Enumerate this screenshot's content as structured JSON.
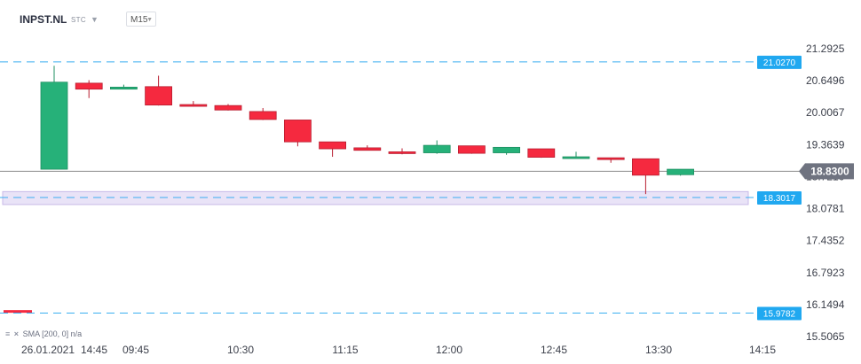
{
  "header": {
    "symbol": "INPST.NL",
    "exchange": "STC",
    "caret": "▼",
    "timeframe": "M15",
    "timeframe_caret": "▼"
  },
  "indicator": {
    "icon": "≡",
    "remove": "×",
    "label": "SMA",
    "params": "[200, 0]",
    "value": "n/a"
  },
  "colors": {
    "up": "#26b179",
    "down": "#f5293f",
    "dashed": "#3aaef0",
    "zone_fill": "#e9e3f7",
    "zone_border": "#c8b9e8",
    "current_line": "#8a8a8a",
    "current_badge": "#6f7380"
  },
  "chart_data": {
    "type": "candlestick",
    "symbol": "INPST.NL",
    "timeframe": "M15",
    "y_axis": {
      "ticks": [
        "21.2925",
        "20.6496",
        "20.0067",
        "19.3639",
        "18.7210",
        "18.0781",
        "17.4352",
        "16.7923",
        "16.1494",
        "15.5065"
      ],
      "range": [
        15.45,
        21.35
      ]
    },
    "x_axis": {
      "ticks": [
        "26.01.2021",
        "14:45",
        "09:45",
        "10:30",
        "11:15",
        "12:00",
        "12:45",
        "13:30",
        "14:15"
      ]
    },
    "candles": [
      {
        "o": 18.87,
        "h": 20.95,
        "l": 18.87,
        "c": 20.62
      },
      {
        "o": 20.6,
        "h": 20.66,
        "l": 20.3,
        "c": 20.48
      },
      {
        "o": 20.48,
        "h": 20.57,
        "l": 20.48,
        "c": 20.52
      },
      {
        "o": 20.53,
        "h": 20.75,
        "l": 20.15,
        "c": 20.16
      },
      {
        "o": 20.17,
        "h": 20.24,
        "l": 20.13,
        "c": 20.15
      },
      {
        "o": 20.15,
        "h": 20.18,
        "l": 20.05,
        "c": 20.06
      },
      {
        "o": 20.03,
        "h": 20.1,
        "l": 19.86,
        "c": 19.87
      },
      {
        "o": 19.86,
        "h": 19.86,
        "l": 19.33,
        "c": 19.42
      },
      {
        "o": 19.42,
        "h": 19.42,
        "l": 19.12,
        "c": 19.28
      },
      {
        "o": 19.3,
        "h": 19.35,
        "l": 19.25,
        "c": 19.25
      },
      {
        "o": 19.22,
        "h": 19.29,
        "l": 19.17,
        "c": 19.19
      },
      {
        "o": 19.2,
        "h": 19.45,
        "l": 19.18,
        "c": 19.35
      },
      {
        "o": 19.34,
        "h": 19.34,
        "l": 19.18,
        "c": 19.19
      },
      {
        "o": 19.2,
        "h": 19.31,
        "l": 19.16,
        "c": 19.31
      },
      {
        "o": 19.28,
        "h": 19.28,
        "l": 19.1,
        "c": 19.11
      },
      {
        "o": 19.09,
        "h": 19.22,
        "l": 19.09,
        "c": 19.12
      },
      {
        "o": 19.1,
        "h": 19.1,
        "l": 19.0,
        "c": 19.08
      },
      {
        "o": 19.08,
        "h": 19.08,
        "l": 18.37,
        "c": 18.75
      },
      {
        "o": 18.76,
        "h": 18.87,
        "l": 18.74,
        "c": 18.87
      }
    ],
    "levels": [
      {
        "value": 21.027,
        "label": "21.0270",
        "style": "dashed"
      },
      {
        "value": 18.3017,
        "label": "18.3017",
        "style": "dashed"
      },
      {
        "value": 15.9782,
        "label": "15.9782",
        "style": "dashed"
      }
    ],
    "zone": {
      "from": 18.16,
      "to": 18.42
    },
    "current": {
      "value": 18.83,
      "label": "18.8300"
    },
    "left_stub": {
      "value": 16.02
    }
  }
}
